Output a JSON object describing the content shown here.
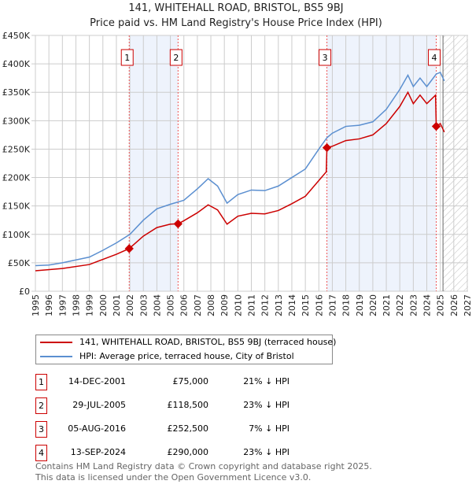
{
  "chart_data": {
    "type": "line",
    "title": "141, WHITEHALL ROAD, BRISTOL, BS5 9BJ",
    "subtitle": "Price paid vs. HM Land Registry's House Price Index (HPI)",
    "xlim": [
      1995,
      2027
    ],
    "ylim": [
      0,
      450000
    ],
    "y_ticks": [
      {
        "v": 0,
        "l": "£0"
      },
      {
        "v": 50000,
        "l": "£50K"
      },
      {
        "v": 100000,
        "l": "£100K"
      },
      {
        "v": 150000,
        "l": "£150K"
      },
      {
        "v": 200000,
        "l": "£200K"
      },
      {
        "v": 250000,
        "l": "£250K"
      },
      {
        "v": 300000,
        "l": "£300K"
      },
      {
        "v": 350000,
        "l": "£350K"
      },
      {
        "v": 400000,
        "l": "£400K"
      },
      {
        "v": 450000,
        "l": "£450K"
      }
    ],
    "x_ticks": [
      "1995",
      "1996",
      "1997",
      "1998",
      "1999",
      "2000",
      "2001",
      "2002",
      "2003",
      "2004",
      "2005",
      "2006",
      "2007",
      "2008",
      "2009",
      "2010",
      "2011",
      "2012",
      "2013",
      "2014",
      "2015",
      "2016",
      "2017",
      "2018",
      "2019",
      "2020",
      "2021",
      "2022",
      "2023",
      "2024",
      "2025",
      "2026",
      "2027"
    ],
    "forecast_from": 2025.2,
    "series": [
      {
        "name": "141, WHITEHALL ROAD, BRISTOL, BS5 9BJ (terraced house)",
        "color": "#cc0000",
        "x": [
          1995,
          1997,
          1999,
          2000,
          2001,
          2001.95,
          2003,
          2004,
          2005,
          2005.57,
          2006,
          2007,
          2007.8,
          2008.5,
          2009.2,
          2010,
          2011,
          2012,
          2013,
          2014,
          2015,
          2016.55,
          2016.6,
          2017,
          2018,
          2019,
          2020,
          2021,
          2022,
          2022.6,
          2023,
          2023.5,
          2024,
          2024.65,
          2024.7,
          2025,
          2025.3
        ],
        "y": [
          36000,
          40000,
          47000,
          56000,
          65000,
          75000,
          97000,
          112000,
          118000,
          118500,
          124000,
          138000,
          152000,
          143000,
          118000,
          132000,
          137000,
          136000,
          142000,
          154000,
          167000,
          210000,
          252500,
          255000,
          265000,
          268000,
          275000,
          295000,
          325000,
          350000,
          330000,
          345000,
          330000,
          345000,
          290000,
          295000,
          280000
        ]
      },
      {
        "name": "HPI: Average price, terraced house, City of Bristol",
        "color": "#5b8fd0",
        "x": [
          1995,
          1996,
          1997,
          1998,
          1999,
          2000,
          2001,
          2002,
          2003,
          2004,
          2005,
          2006,
          2007,
          2007.8,
          2008.5,
          2009.2,
          2010,
          2011,
          2012,
          2013,
          2014,
          2015,
          2016,
          2016.6,
          2017,
          2018,
          2019,
          2020,
          2021,
          2022,
          2022.6,
          2023,
          2023.5,
          2024,
          2024.7,
          2025,
          2025.3
        ],
        "y": [
          45000,
          46000,
          50000,
          55000,
          60000,
          72000,
          85000,
          100000,
          125000,
          145000,
          153000,
          160000,
          180000,
          198000,
          185000,
          155000,
          170000,
          178000,
          177000,
          185000,
          200000,
          215000,
          250000,
          270000,
          278000,
          290000,
          292000,
          298000,
          320000,
          355000,
          380000,
          360000,
          375000,
          360000,
          382000,
          385000,
          370000
        ]
      }
    ],
    "sales": [
      {
        "n": "1",
        "x": 2001.95,
        "y": 75000,
        "date": "14-DEC-2001",
        "price": "£75,000",
        "hpi": "21% ↓ HPI"
      },
      {
        "n": "2",
        "x": 2005.57,
        "y": 118500,
        "date": "29-JUL-2005",
        "price": "£118,500",
        "hpi": "23% ↓ HPI"
      },
      {
        "n": "3",
        "x": 2016.6,
        "y": 252500,
        "date": "05-AUG-2016",
        "price": "£252,500",
        "hpi": "7% ↓ HPI"
      },
      {
        "n": "4",
        "x": 2024.7,
        "y": 290000,
        "date": "13-SEP-2024",
        "price": "£290,000",
        "hpi": "23% ↓ HPI"
      }
    ],
    "footer": [
      "Contains HM Land Registry data © Crown copyright and database right 2025.",
      "This data is licensed under the Open Government Licence v3.0."
    ]
  }
}
